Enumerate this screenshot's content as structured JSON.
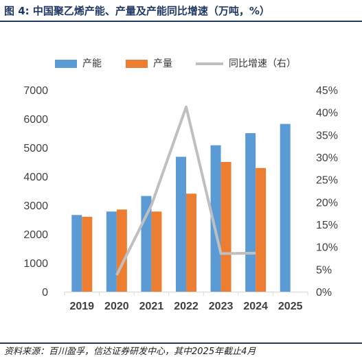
{
  "title": "图 4:  中国聚乙烯产能、产量及产能同比增速（万吨，%）",
  "source": "资料来源：百川盈孚，信达证券研发中心，其中2025年截止4月",
  "legend": {
    "capacity": "产能",
    "output": "产量",
    "growth": "同比增速（右）"
  },
  "colors": {
    "capacity": "#5b9bd5",
    "output": "#ed7d31",
    "growth": "#bfbfbf",
    "title": "#1f3864",
    "axis": "#d9d9d9"
  },
  "chart_data": {
    "type": "bar",
    "categories": [
      "2019",
      "2020",
      "2021",
      "2022",
      "2023",
      "2024",
      "2025"
    ],
    "series": [
      {
        "name": "产能",
        "type": "bar",
        "axis": "left",
        "values": [
          2660,
          2780,
          3320,
          4680,
          5080,
          5500,
          5820
        ]
      },
      {
        "name": "产量",
        "type": "bar",
        "axis": "left",
        "values": [
          2600,
          2850,
          2780,
          3400,
          4500,
          4290,
          null
        ]
      },
      {
        "name": "同比增速（右）",
        "type": "line",
        "axis": "right",
        "values": [
          null,
          3.7,
          19.3,
          41.2,
          8.5,
          8.6,
          null
        ]
      }
    ],
    "y_left": {
      "min": 0,
      "max": 7000,
      "step": 1000,
      "ticks": [
        "0",
        "1000",
        "2000",
        "3000",
        "4000",
        "5000",
        "6000",
        "7000"
      ]
    },
    "y_right": {
      "min": 0,
      "max": 45,
      "step": 5,
      "ticks": [
        "0%",
        "5%",
        "10%",
        "15%",
        "20%",
        "25%",
        "30%",
        "35%",
        "40%",
        "45%"
      ]
    },
    "legend_position": "top",
    "grid": false
  }
}
